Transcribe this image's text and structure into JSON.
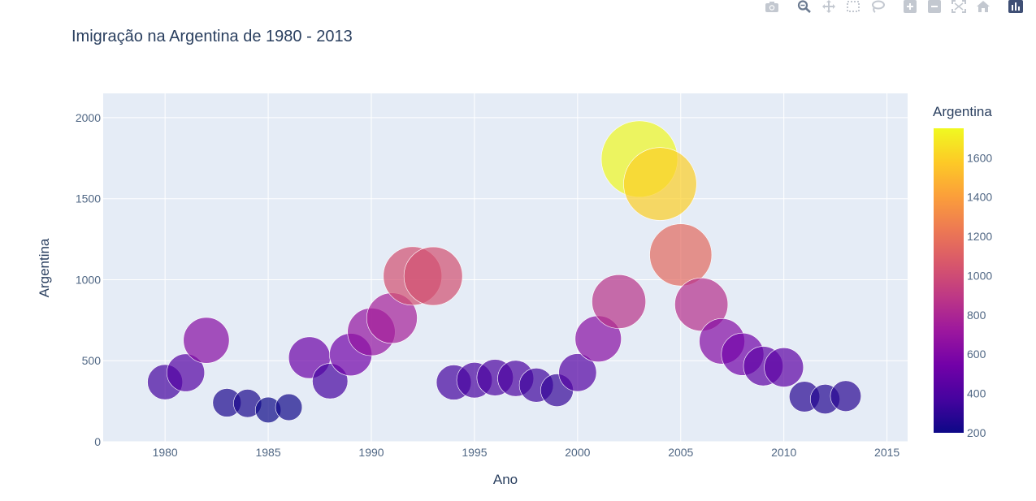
{
  "modebar": {
    "buttons": [
      {
        "name": "camera-icon"
      },
      {
        "name": "zoom-icon"
      },
      {
        "name": "pan-icon"
      },
      {
        "name": "box-select-icon"
      },
      {
        "name": "lasso-icon"
      },
      {
        "name": "zoom-in-icon"
      },
      {
        "name": "zoom-out-icon"
      },
      {
        "name": "autoscale-icon"
      },
      {
        "name": "reset-axes-icon"
      },
      {
        "name": "plotly-logo-icon"
      }
    ]
  },
  "chart_data": {
    "type": "scatter",
    "title": "Imigração na Argentina de 1980 - 2013",
    "xlabel": "Ano",
    "ylabel": "Argentina",
    "xlim": [
      1977,
      2016
    ],
    "ylim": [
      0,
      2150
    ],
    "xticks": [
      1980,
      1985,
      1990,
      1995,
      2000,
      2005,
      2010,
      2015
    ],
    "yticks": [
      0,
      500,
      1000,
      1500,
      2000
    ],
    "x": [
      1980,
      1981,
      1982,
      1983,
      1984,
      1985,
      1986,
      1987,
      1988,
      1989,
      1990,
      1991,
      1992,
      1993,
      1994,
      1995,
      1996,
      1997,
      1998,
      1999,
      2000,
      2001,
      2002,
      2003,
      2004,
      2005,
      2006,
      2007,
      2008,
      2009,
      2010,
      2011,
      2012,
      2013
    ],
    "y": [
      368,
      426,
      626,
      241,
      237,
      196,
      213,
      519,
      374,
      538,
      678,
      763,
      1023,
      1022,
      366,
      380,
      396,
      391,
      349,
      318,
      427,
      635,
      865,
      1745,
      1591,
      1153,
      847,
      620,
      540,
      467,
      459,
      278,
      263,
      282
    ],
    "colorbar": {
      "title": "Argentina",
      "range": [
        200,
        1750
      ],
      "ticks": [
        200,
        400,
        600,
        800,
        1000,
        1200,
        1400,
        1600
      ],
      "colorscale": [
        "#0d0887",
        "#46039f",
        "#7201a8",
        "#9c179e",
        "#bd3786",
        "#d8576b",
        "#ed7953",
        "#fb9f3a",
        "#fdca26",
        "#f0f921"
      ]
    },
    "grid": true,
    "marker_opacity": 0.7
  }
}
